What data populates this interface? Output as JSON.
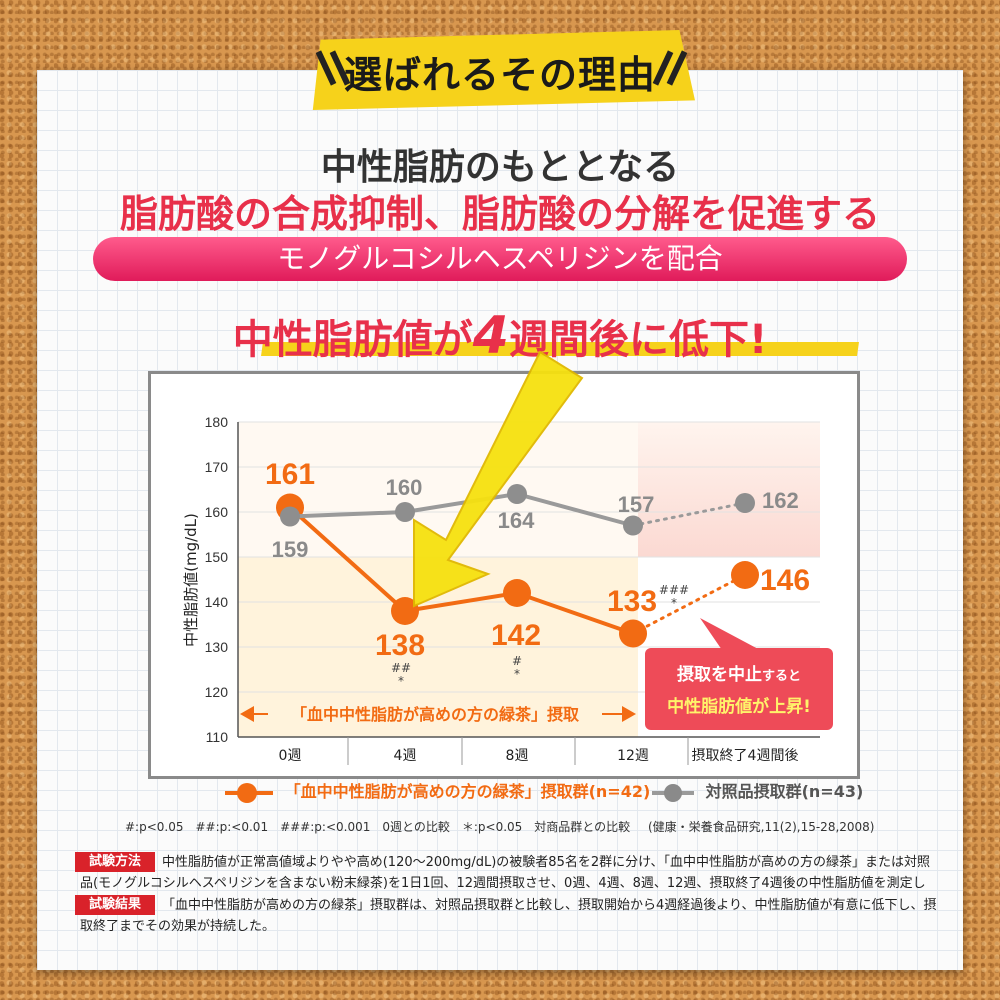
{
  "banner": "選ばれるその理由",
  "headline1": "中性脂肪のもととなる",
  "headline2": "脂肪酸の合成抑制、脂肪酸の分解を促進する",
  "pill": "モノグルコシルヘスペリジンを配合",
  "callout_a": "中性脂肪値が",
  "callout_num": "4",
  "callout_b": "週間後に低下!",
  "chart_data": {
    "type": "line",
    "ylabel": "中性脂肪値(mg/dL)",
    "ylim": [
      110,
      180
    ],
    "yticks": [
      110,
      120,
      130,
      140,
      150,
      160,
      170,
      180
    ],
    "categories": [
      "0週",
      "4週",
      "8週",
      "12週",
      "摂取終了4週間後"
    ],
    "series": [
      {
        "name": "「血中中性脂肪が高めの方の緑茶」摂取群(n=42)",
        "color": "#f26b13",
        "values": [
          161,
          138,
          142,
          133,
          146
        ],
        "labels": [
          "161",
          "138",
          "142",
          "133",
          "146"
        ],
        "sig": [
          "",
          "##\n*",
          "#\n*",
          "###\n*",
          ""
        ]
      },
      {
        "name": "対照品摂取群(n=43)",
        "color": "#9a9a9a",
        "values": [
          159,
          160,
          164,
          157,
          162
        ],
        "labels": [
          "159",
          "160",
          "164",
          "157",
          "162"
        ]
      }
    ],
    "arrow_text": "「血中中性脂肪が高めの方の緑茶」摂取",
    "red_box_line1a": "摂取を中止",
    "red_box_line1b": "すると",
    "red_box_line2": "中性脂肪値が上昇!"
  },
  "legend_orange": "「血中中性脂肪が高めの方の緑茶」摂取群(n=42)",
  "legend_gray": "対照品摂取群(n=43)",
  "notes_left": "#:p<0.05　##:p:<0.01　###:p:<0.001　0週との比較　＊:p<0.05　対商品群との比較",
  "notes_right": "(健康・栄養食品研究,11(2),15-28,2008)",
  "method_tag": "試験方法",
  "method_text": "中性脂肪値が正常高値域よりやや高め(120〜200mg/dL)の被験者85名を2群に分け、「血中中性脂肪が高めの方の緑茶」または対照品(モノグルコシルヘスペリジンを含まない粉末緑茶)を1日1回、12週間摂取させ、0週、4週、8週、12週、摂取終了4週後の中性脂肪値を測定した。",
  "result_tag": "試験結果",
  "result_text": "「血中中性脂肪が高めの方の緑茶」摂取群は、対照品摂取群と比較し、摂取開始から4週経過後より、中性脂肪値が有意に低下し、摂取終了までその効果が持続した。",
  "colors": {
    "accent_red": "#e8304a",
    "orange": "#f26b13",
    "gray": "#9a9a9a",
    "yellow": "#f6d21b"
  }
}
